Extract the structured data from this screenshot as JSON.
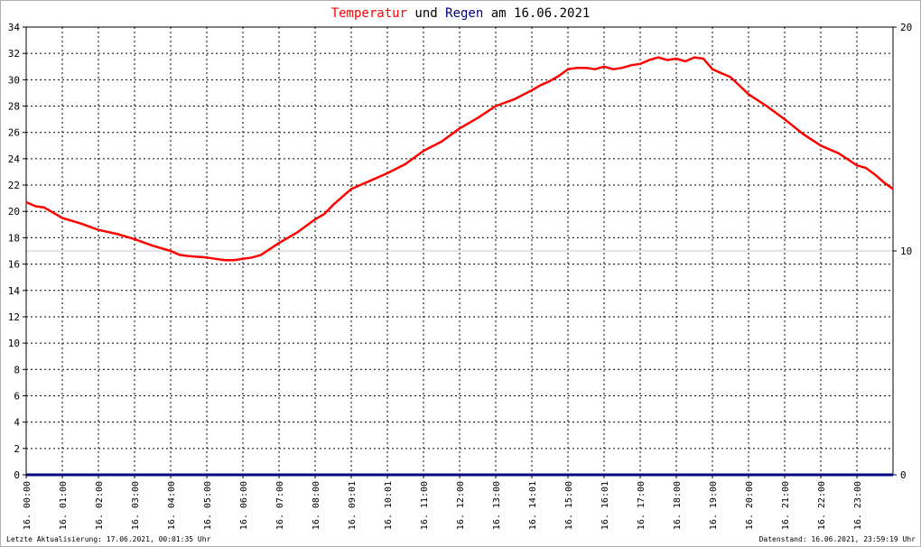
{
  "title_parts": [
    {
      "text": "Temperatur",
      "color": "#ff0000"
    },
    {
      "text": " und ",
      "color": "#000000"
    },
    {
      "text": "Regen",
      "color": "#00007f"
    },
    {
      "text": " am 16.06.2021",
      "color": "#000000"
    }
  ],
  "footer": {
    "left": "Letzte Aktualisierung: 17.06.2021, 00:01:35 Uhr",
    "right": "Datenstand: 16.06.2021, 23:59:19 Uhr"
  },
  "chart_data": {
    "type": "line",
    "grid": true,
    "x_tick_labels": [
      "16. 00:00",
      "16. 01:00",
      "16. 02:00",
      "16. 03:00",
      "16. 04:00",
      "16. 05:00",
      "16. 06:00",
      "16. 07:00",
      "16. 08:00",
      "16. 09:01",
      "16. 10:01",
      "16. 11:00",
      "16. 12:00",
      "16. 13:00",
      "16. 14:01",
      "16. 15:00",
      "16. 16:01",
      "16. 17:00",
      "16. 18:00",
      "16. 19:00",
      "16. 20:00",
      "16. 21:00",
      "16. 22:00",
      "16. 23:00"
    ],
    "y_left": {
      "min": 0,
      "max": 34,
      "step": 2
    },
    "y_right": {
      "min": 0,
      "max": 20,
      "ticks": [
        0,
        10,
        20
      ]
    },
    "series": [
      {
        "name": "Temperatur",
        "axis": "left",
        "color": "#ff0000",
        "x_hours": [
          0,
          0.25,
          0.5,
          0.75,
          1,
          1.5,
          2,
          2.5,
          3,
          3.5,
          4,
          4.25,
          4.5,
          5,
          5.25,
          5.5,
          5.75,
          6,
          6.25,
          6.5,
          7,
          7.5,
          8,
          8.25,
          8.5,
          9,
          9.5,
          10,
          10.5,
          11,
          11.5,
          12,
          12.5,
          13,
          13.5,
          14,
          14.25,
          14.5,
          14.75,
          15,
          15.25,
          15.5,
          15.75,
          16,
          16.25,
          16.5,
          16.75,
          17,
          17.25,
          17.5,
          17.75,
          18,
          18.25,
          18.5,
          18.75,
          19,
          19.25,
          19.5,
          20,
          20.5,
          21,
          21.5,
          22,
          22.5,
          23,
          23.25,
          23.5,
          23.75,
          24
        ],
        "y": [
          20.7,
          20.4,
          20.3,
          19.9,
          19.5,
          19.1,
          18.6,
          18.3,
          17.9,
          17.4,
          17.0,
          16.7,
          16.6,
          16.5,
          16.4,
          16.3,
          16.3,
          16.4,
          16.5,
          16.7,
          17.6,
          18.4,
          19.4,
          19.8,
          20.5,
          21.7,
          22.3,
          22.9,
          23.6,
          24.6,
          25.3,
          26.3,
          27.1,
          28.0,
          28.5,
          29.2,
          29.6,
          29.9,
          30.3,
          30.8,
          30.9,
          30.9,
          30.8,
          31.0,
          30.8,
          30.9,
          31.1,
          31.2,
          31.5,
          31.7,
          31.5,
          31.6,
          31.4,
          31.7,
          31.6,
          30.8,
          30.5,
          30.2,
          28.9,
          28.0,
          27.0,
          25.9,
          25.0,
          24.4,
          23.5,
          23.3,
          22.8,
          22.2,
          21.7
        ]
      },
      {
        "name": "Regen",
        "axis": "right",
        "color": "#00007f",
        "x_hours": [
          0,
          24
        ],
        "y": [
          0,
          0
        ]
      }
    ]
  },
  "style": {
    "grid_color": "#000000",
    "axis_color": "#000000",
    "ref_line_color": "#c8c8c8"
  }
}
